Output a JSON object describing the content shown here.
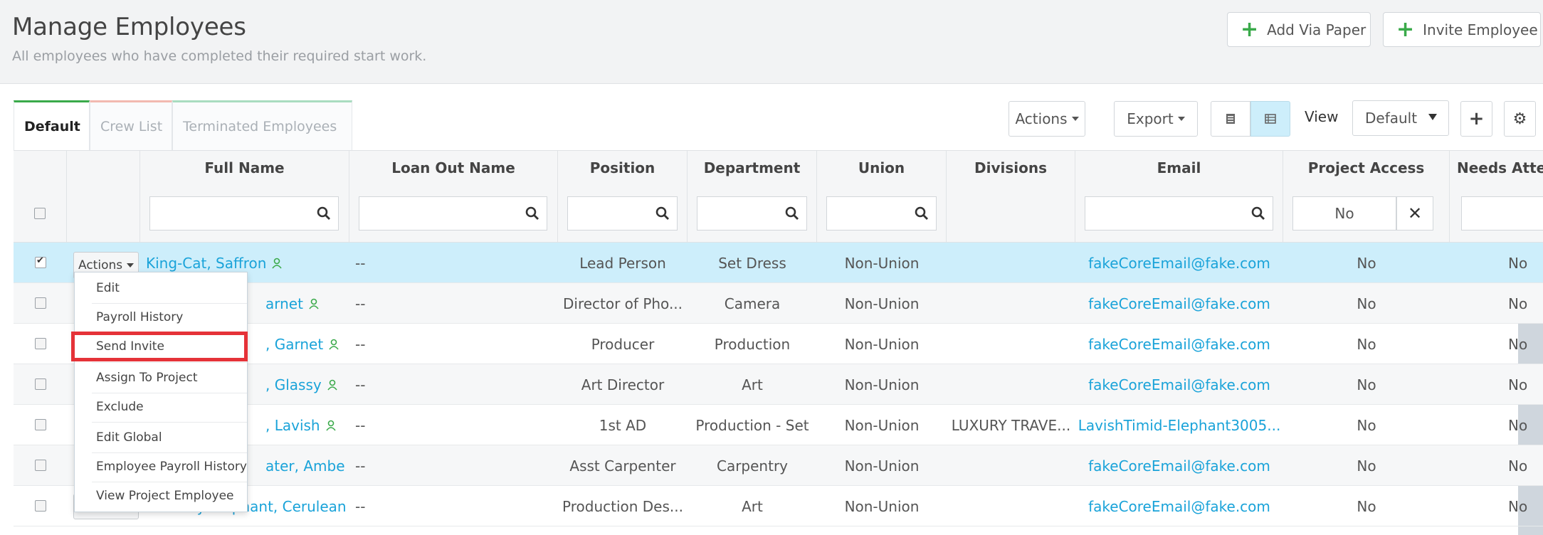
{
  "header": {
    "title": "Manage Employees",
    "subtitle": "All employees who have completed their required start work.",
    "add_via_paper": "Add Via Paper",
    "invite_employee": "Invite Employee"
  },
  "tabs": [
    "Default",
    "Crew List",
    "Terminated Employees"
  ],
  "toolbar": {
    "actions": "Actions",
    "export": "Export",
    "view_label": "View",
    "view_value": "Default"
  },
  "columns": [
    "Full Name",
    "Loan Out Name",
    "Position",
    "Department",
    "Union",
    "Divisions",
    "Email",
    "Project Access",
    "Needs Atte"
  ],
  "filters": {
    "project_access": "No"
  },
  "row_action_label": "Actions",
  "rows": [
    {
      "name": "King-Cat, Saffron",
      "loan_out": "--",
      "position": "Lead Person",
      "department": "Set Dress",
      "union": "Non-Union",
      "divisions": "",
      "email": "fakeCoreEmail@fake.com",
      "access": "No",
      "needs": "No"
    },
    {
      "name": "arnet",
      "loan_out": "--",
      "position": "Director of Pho...",
      "department": "Camera",
      "union": "Non-Union",
      "divisions": "",
      "email": "fakeCoreEmail@fake.com",
      "access": "No",
      "needs": "No"
    },
    {
      "name": ", Garnet",
      "loan_out": "--",
      "position": "Producer",
      "department": "Production",
      "union": "Non-Union",
      "divisions": "",
      "email": "fakeCoreEmail@fake.com",
      "access": "No",
      "needs": "No"
    },
    {
      "name": ", Glassy",
      "loan_out": "--",
      "position": "Art Director",
      "department": "Art",
      "union": "Non-Union",
      "divisions": "",
      "email": "fakeCoreEmail@fake.com",
      "access": "No",
      "needs": "No"
    },
    {
      "name": ", Lavish",
      "loan_out": "--",
      "position": "1st AD",
      "department": "Production - Set",
      "union": "Non-Union",
      "divisions": "LUXURY TRAVE...",
      "email": "LavishTimid-Elephant3005...",
      "access": "No",
      "needs": "No"
    },
    {
      "name": "ater, Amber...",
      "loan_out": "--",
      "position": "Asst Carpenter",
      "department": "Carpentry",
      "union": "Non-Union",
      "divisions": "",
      "email": "fakeCoreEmail@fake.com",
      "access": "No",
      "needs": "No"
    },
    {
      "name": "Lonely-Elephant, Cerulean...",
      "loan_out": "--",
      "position": "Production Des...",
      "department": "Art",
      "union": "Non-Union",
      "divisions": "",
      "email": "fakeCoreEmail@fake.com",
      "access": "No",
      "needs": "No"
    }
  ],
  "menu": [
    "Edit",
    "Payroll History",
    "Send Invite",
    "Assign To Project",
    "Exclude",
    "Edit Global",
    "Employee Payroll History",
    "View Project Employee"
  ],
  "colors": {
    "link": "#1aa3d9",
    "selected_row": "#cdeefb",
    "highlight": "#e53238",
    "accent_green": "#3aaa4a"
  }
}
